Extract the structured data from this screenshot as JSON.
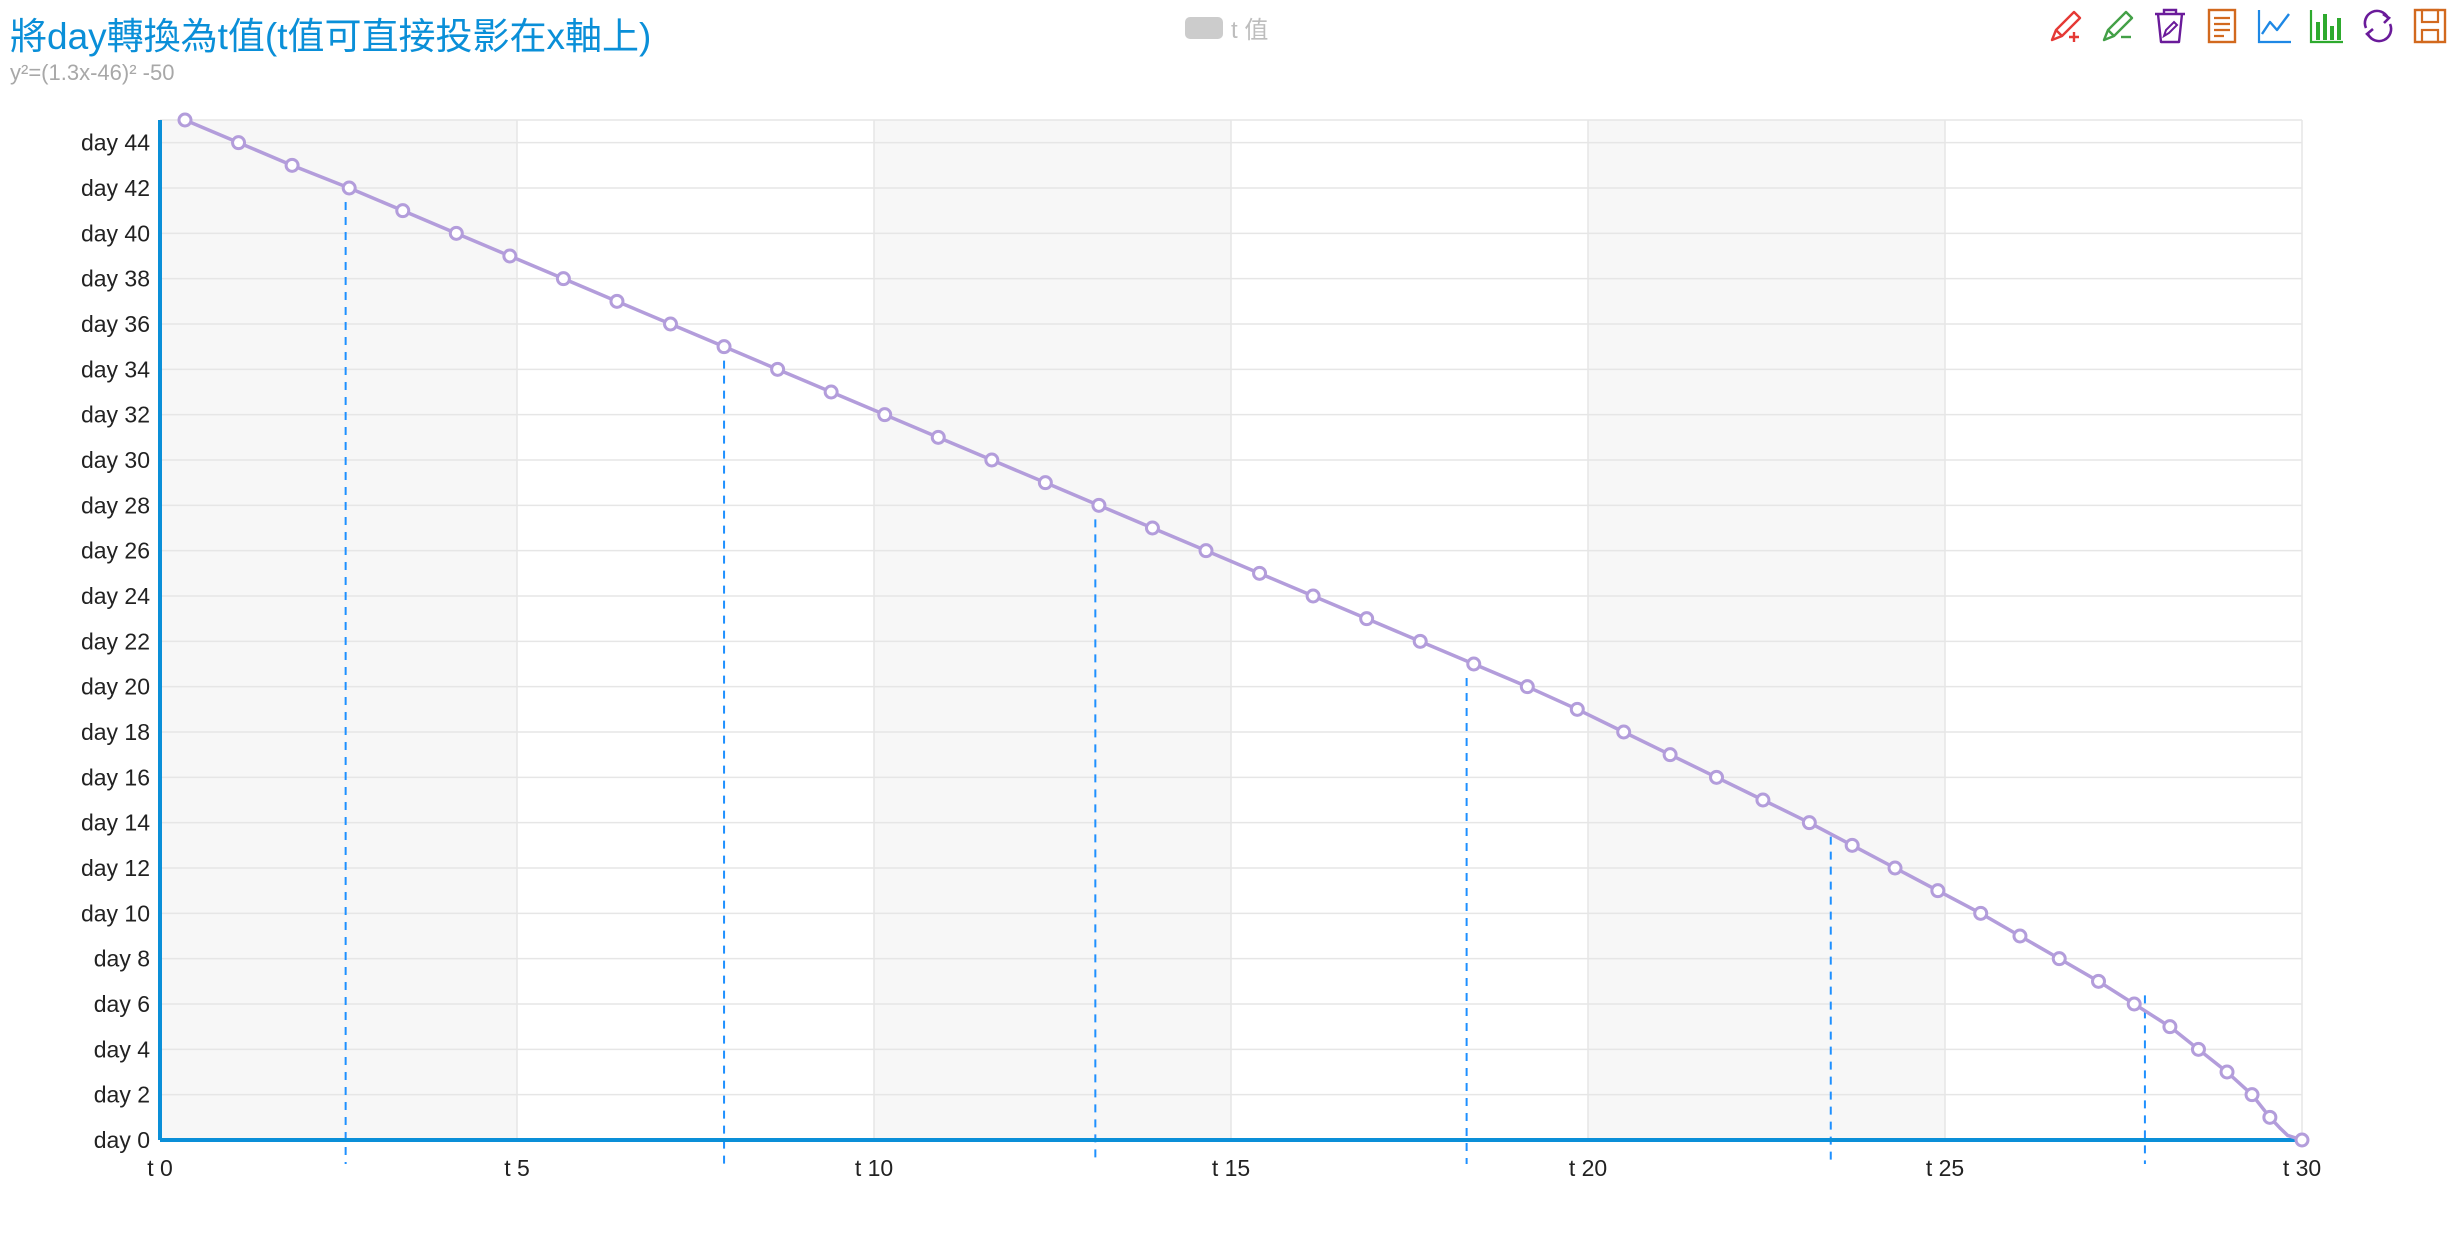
{
  "chart_data": {
    "type": "line",
    "title": "將day轉換為t值(t值可直接投影在x軸上)",
    "subtitle": "y²=(1.3x-46)² -50",
    "legend": {
      "items": [
        "t 值"
      ],
      "placement": "top-center"
    },
    "series": [
      {
        "name": "t 值",
        "color": "#b39ddb",
        "x": [
          0.35,
          1.1,
          1.85,
          2.65,
          3.4,
          4.15,
          4.9,
          5.65,
          6.4,
          7.15,
          7.9,
          8.65,
          9.4,
          10.15,
          10.9,
          11.65,
          12.4,
          13.15,
          13.9,
          14.65,
          15.4,
          16.15,
          16.9,
          17.65,
          18.4,
          19.15,
          19.85,
          20.5,
          21.15,
          21.8,
          22.45,
          23.1,
          23.7,
          24.3,
          24.9,
          25.5,
          26.05,
          26.6,
          27.15,
          27.65,
          28.15,
          28.55,
          28.95,
          29.3,
          29.55,
          29.7,
          29.8,
          30.0
        ],
        "y": [
          45,
          44,
          43,
          42,
          41,
          40,
          39,
          38,
          37,
          36,
          35,
          34,
          33,
          32,
          31,
          30,
          29,
          28,
          27,
          26,
          25,
          24,
          23,
          22,
          21,
          20,
          19,
          18,
          17,
          16,
          15,
          14,
          13,
          12,
          11,
          10,
          9,
          8,
          7,
          6,
          5,
          4,
          3,
          2,
          1,
          0.5,
          0.2,
          0
        ]
      }
    ],
    "projection_lines": {
      "color": "#1e90ff",
      "style": "dashed",
      "x": [
        2.6,
        7.9,
        13.1,
        18.3,
        23.4,
        27.8
      ],
      "y": [
        42,
        35,
        28,
        21,
        14,
        7
      ]
    },
    "xaxis": {
      "min": 0,
      "max": 30,
      "ticks": [
        0,
        5,
        10,
        15,
        20,
        25,
        30
      ],
      "tick_labels": [
        "t 0",
        "t 5",
        "t 10",
        "t 15",
        "t 20",
        "t 25",
        "t 30"
      ]
    },
    "yaxis": {
      "min": 0,
      "max": 45,
      "ticks": [
        0,
        2,
        4,
        6,
        8,
        10,
        12,
        14,
        16,
        18,
        20,
        22,
        24,
        26,
        28,
        30,
        32,
        34,
        36,
        38,
        40,
        42,
        44
      ],
      "tick_labels": [
        "day 0",
        "day 2",
        "day 4",
        "day 6",
        "day 8",
        "day 10",
        "day 12",
        "day 14",
        "day 16",
        "day 18",
        "day 20",
        "day 22",
        "day 24",
        "day 26",
        "day 28",
        "day 30",
        "day 32",
        "day 34",
        "day 36",
        "day 38",
        "day 40",
        "day 42",
        "day 44"
      ]
    },
    "split_area": {
      "x_bands": true,
      "colors": [
        "#f7f7f7",
        "#ffffff"
      ]
    },
    "grid": true,
    "axis_color": "#0a8fd8"
  },
  "toolbox": [
    {
      "name": "mark-icon",
      "color": "#e53935"
    },
    {
      "name": "mark-undo-icon",
      "color": "#43a047"
    },
    {
      "name": "mark-clear-icon",
      "color": "#6a1b9a"
    },
    {
      "name": "data-view-icon",
      "color": "#d2691e"
    },
    {
      "name": "line-chart-icon",
      "color": "#1e88e5"
    },
    {
      "name": "bar-chart-icon",
      "color": "#2eaa2e"
    },
    {
      "name": "restore-icon",
      "color": "#6a1b9a"
    },
    {
      "name": "save-image-icon",
      "color": "#d2691e"
    }
  ]
}
